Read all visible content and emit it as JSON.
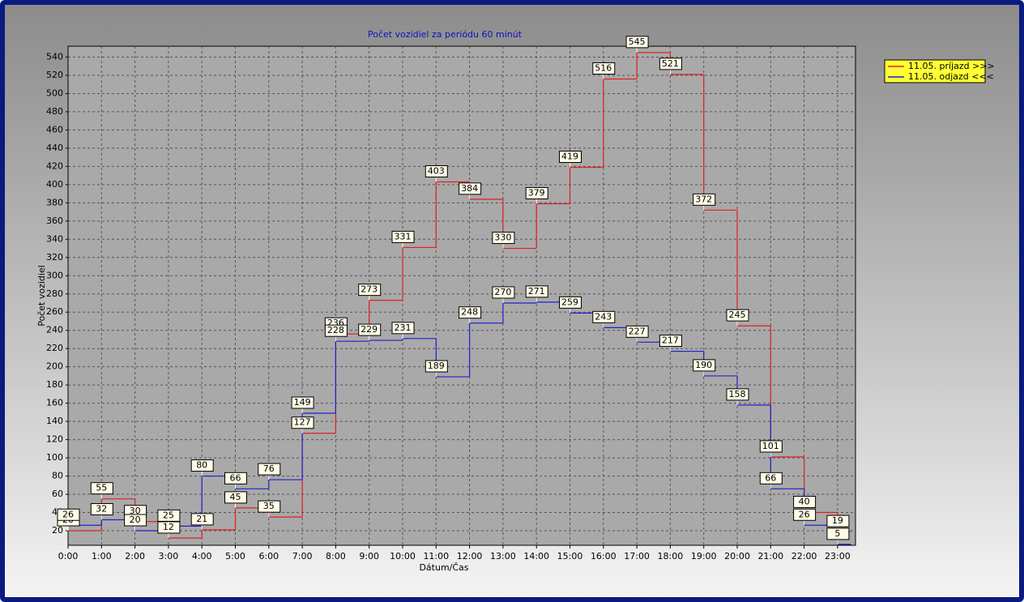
{
  "chart_data": {
    "type": "step",
    "title": "Počet vozidiel za periódu 60 minút",
    "x_label": "Dátum/Čas",
    "y_label": "Počet vozidiel",
    "categories": [
      "0:00",
      "1:00",
      "2:00",
      "3:00",
      "4:00",
      "5:00",
      "6:00",
      "7:00",
      "8:00",
      "9:00",
      "10:00",
      "11:00",
      "12:00",
      "13:00",
      "14:00",
      "15:00",
      "16:00",
      "17:00",
      "18:00",
      "19:00",
      "20:00",
      "21:00",
      "22:00",
      "23:00"
    ],
    "series": [
      {
        "name": "11.05.  príjazd >>>",
        "color": "#e02020",
        "values": [
          20,
          55,
          30,
          12,
          21,
          45,
          35,
          127,
          236,
          273,
          331,
          403,
          384,
          330,
          379,
          419,
          516,
          545,
          521,
          372,
          245,
          101,
          40,
          19
        ]
      },
      {
        "name": "11.05.  odjazd <<<",
        "color": "#2020d0",
        "values": [
          26,
          32,
          20,
          25,
          80,
          66,
          76,
          149,
          228,
          229,
          231,
          189,
          248,
          270,
          271,
          259,
          243,
          227,
          217,
          190,
          158,
          66,
          26,
          5
        ]
      }
    ],
    "ylim": [
      4,
      552
    ],
    "yticks": [
      20,
      40,
      60,
      80,
      100,
      120,
      140,
      160,
      180,
      200,
      220,
      240,
      260,
      280,
      300,
      320,
      340,
      360,
      380,
      400,
      420,
      440,
      460,
      480,
      500,
      520,
      540
    ],
    "grid": true,
    "legend": "top-right"
  }
}
